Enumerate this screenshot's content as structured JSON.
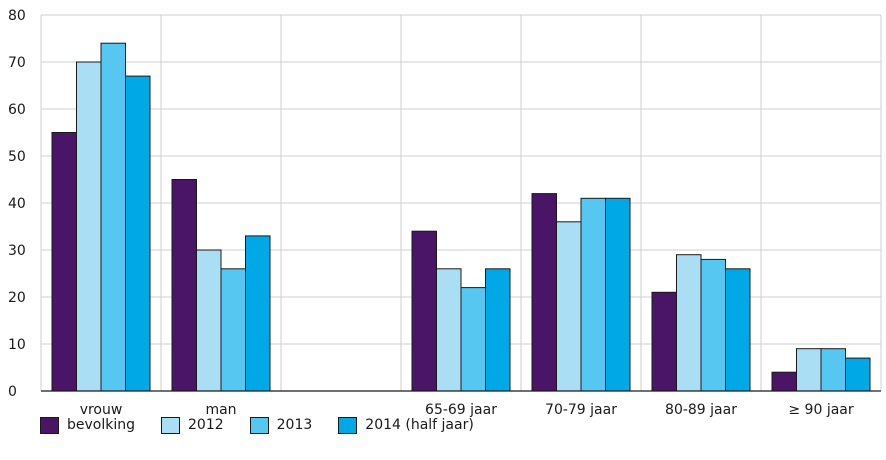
{
  "chart_data": {
    "type": "bar",
    "categories": [
      "vrouw",
      "man",
      "",
      "65-69 jaar",
      "70-79 jaar",
      "80-89 jaar",
      "≥ 90 jaar"
    ],
    "series": [
      {
        "name": "bevolking",
        "color": "#4a1566",
        "values": [
          55,
          45,
          null,
          34,
          42,
          21,
          4
        ]
      },
      {
        "name": "2012",
        "color": "#a9def5",
        "values": [
          70,
          30,
          null,
          26,
          36,
          29,
          9
        ]
      },
      {
        "name": "2013",
        "color": "#55c7f0",
        "values": [
          74,
          26,
          null,
          22,
          41,
          28,
          9
        ]
      },
      {
        "name": "2014 (half jaar)",
        "color": "#00a8e6",
        "values": [
          67,
          33,
          null,
          26,
          41,
          26,
          7
        ]
      }
    ],
    "ylim": [
      0,
      80
    ],
    "yticks": [
      0,
      10,
      20,
      30,
      40,
      50,
      60,
      70,
      80
    ],
    "grid": true,
    "legend_position": "bottom-left"
  }
}
